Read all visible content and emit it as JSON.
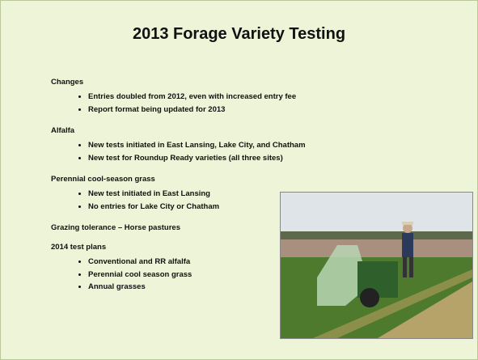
{
  "title": "2013 Forage Variety Testing",
  "sections": [
    {
      "heading": "Changes",
      "bullets": [
        "Entries doubled from 2012, even with increased entry fee",
        "Report format being updated for 2013"
      ]
    },
    {
      "heading": "Alfalfa",
      "bullets": [
        "New tests initiated in East Lansing, Lake City, and Chatham",
        "New test for Roundup Ready varieties (all three sites)"
      ]
    },
    {
      "heading": "Perennial cool-season grass",
      "bullets": [
        "New test initiated in East Lansing",
        "No entries for Lake City or Chatham"
      ]
    },
    {
      "heading": "Grazing tolerance – Horse pastures",
      "bullets": []
    },
    {
      "heading": "2014 test plans",
      "bullets": [
        "Conventional and RR alfalfa",
        "Perennial cool season grass",
        "Annual grasses"
      ]
    }
  ]
}
